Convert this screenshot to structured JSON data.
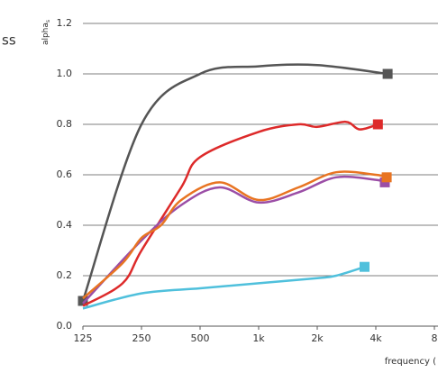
{
  "side_text": "ss",
  "chart_data": {
    "type": "line",
    "y_label": "alpha",
    "y_label_sub": "s",
    "x_label": "frequency (",
    "log_x": true,
    "grid": true,
    "xlim": [
      125,
      8000
    ],
    "xticks": [
      125,
      250,
      500,
      {
        "value": 1000,
        "label": "1k"
      },
      {
        "value": 2000,
        "label": "2k"
      },
      {
        "value": 4000,
        "label": "4k"
      },
      {
        "value": 8000,
        "label": "8"
      }
    ],
    "ylim": [
      0,
      1.2
    ],
    "yticks": [
      {
        "value": 0,
        "label": "0.0"
      },
      0.2,
      0.4,
      0.6,
      0.8,
      {
        "value": 1,
        "label": "1.0"
      },
      1.2
    ],
    "series": [
      {
        "color": "#555555",
        "x": [
          125,
          250,
          500,
          1000,
          2000,
          4600
        ],
        "values": [
          0.1,
          0.8,
          1.0,
          1.03,
          1.035,
          1.0
        ]
      },
      {
        "color": "#dd2a2a",
        "x": [
          125,
          200,
          250,
          400,
          500,
          1000,
          1600,
          2000,
          2800,
          3300,
          4100
        ],
        "values": [
          0.08,
          0.17,
          0.3,
          0.55,
          0.67,
          0.77,
          0.8,
          0.79,
          0.81,
          0.78,
          0.8
        ]
      },
      {
        "color": "#9b4ea6",
        "x": [
          125,
          250,
          400,
          630,
          1000,
          1600,
          2500,
          4000,
          4450
        ],
        "values": [
          0.09,
          0.34,
          0.48,
          0.55,
          0.49,
          0.53,
          0.59,
          0.58,
          0.57
        ]
      },
      {
        "color": "#e87422",
        "x": [
          125,
          200,
          250,
          315,
          400,
          630,
          1000,
          1600,
          2500,
          4000,
          4550
        ],
        "values": [
          0.11,
          0.25,
          0.35,
          0.4,
          0.5,
          0.57,
          0.5,
          0.55,
          0.61,
          0.6,
          0.59
        ]
      },
      {
        "color": "#4fc0dc",
        "x": [
          125,
          250,
          500,
          1000,
          2000,
          2500,
          3500
        ],
        "values": [
          0.07,
          0.13,
          0.15,
          0.17,
          0.19,
          0.2,
          0.235
        ]
      }
    ]
  }
}
